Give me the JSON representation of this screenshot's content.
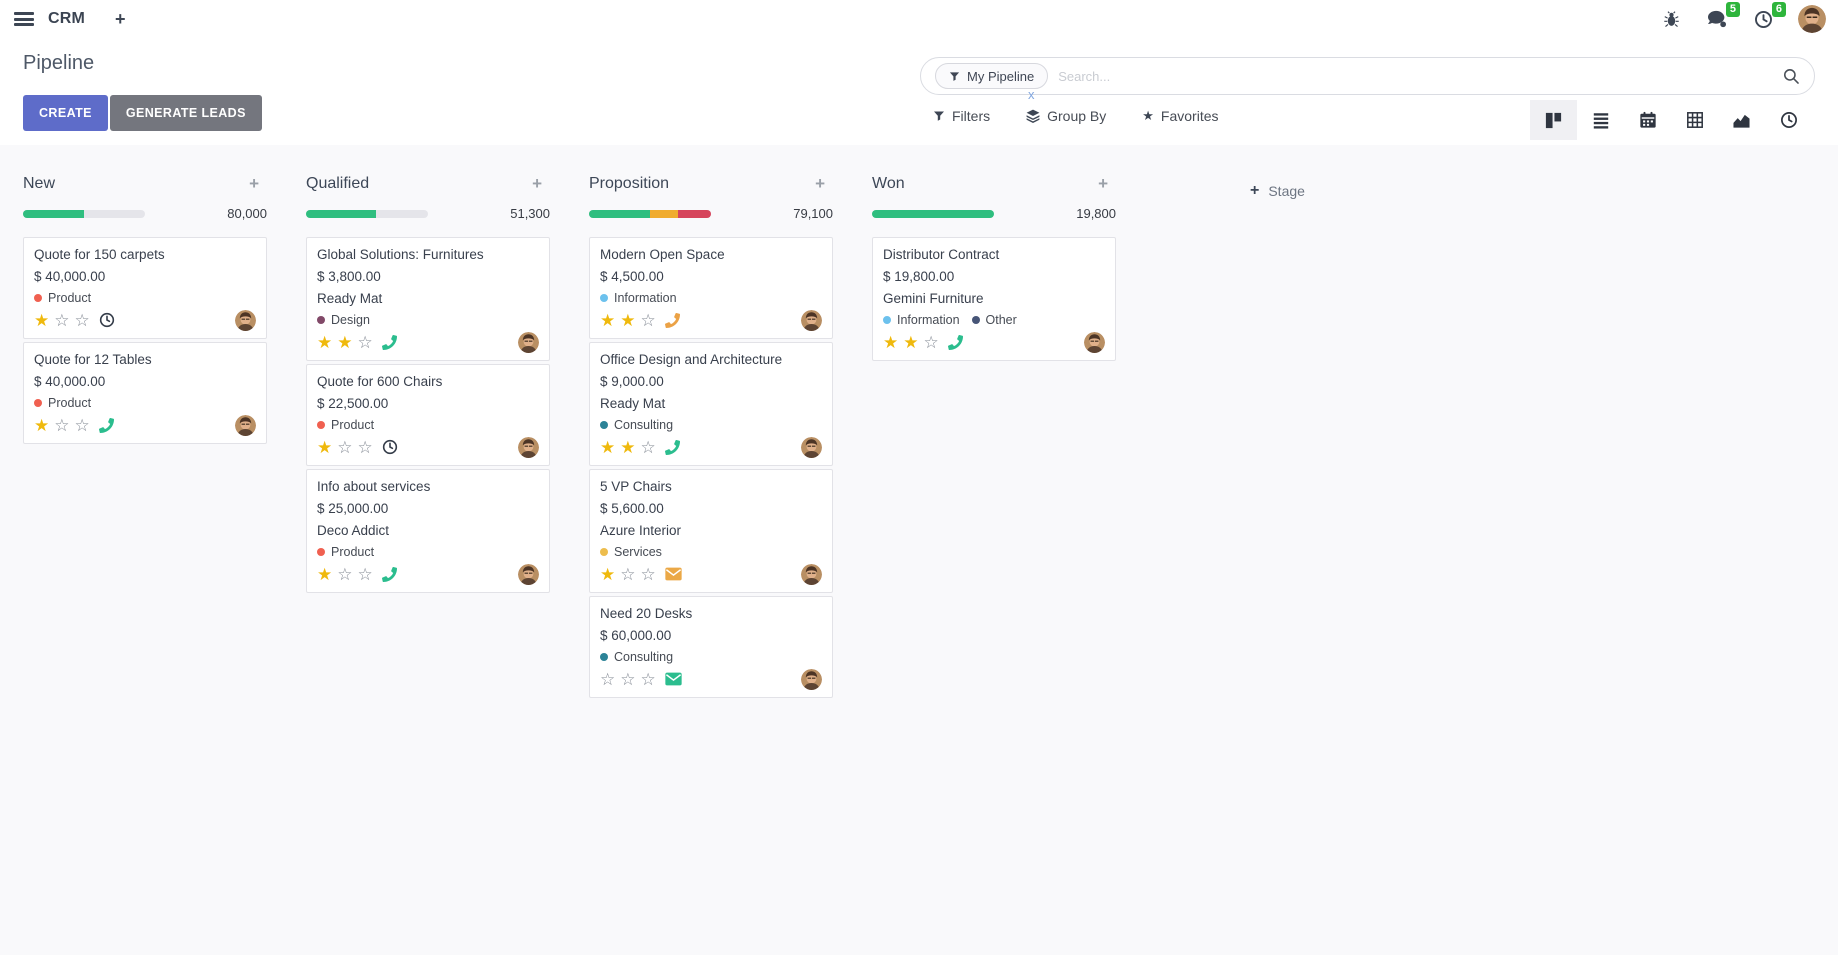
{
  "navbar": {
    "app_name": "CRM",
    "icons": [
      "menu",
      "plus",
      "bug",
      "messages",
      "activities",
      "user-avatar"
    ],
    "messages_badge": "5",
    "activities_badge": "6"
  },
  "control_panel": {
    "title": "Pipeline",
    "buttons": {
      "create": "CREATE",
      "generate_leads": "GENERATE LEADS"
    },
    "search": {
      "facet_label": "My Pipeline",
      "facet_remove": "x",
      "placeholder": "Search..."
    },
    "toolbar": {
      "filters": "Filters",
      "group_by": "Group By",
      "favorites": "Favorites"
    },
    "view_switcher": {
      "options": [
        "kanban",
        "list",
        "calendar",
        "pivot",
        "graph",
        "activity"
      ],
      "active": "kanban"
    }
  },
  "colors": {
    "create_button": "#5e6cc9",
    "generate_button": "#74767e",
    "badge_green": "#2eb53c",
    "progress_green": "#2fbe7f",
    "progress_orange": "#f0ac2f",
    "progress_red": "#d6455c",
    "star_filled": "#efb90d",
    "star_empty": "#878d97"
  },
  "board": {
    "add_stage_label": "Stage",
    "columns": [
      {
        "name": "New",
        "total": "80,000",
        "progress": [
          {
            "color": "#2fbe7f",
            "pct": 50
          }
        ],
        "cards": [
          {
            "title": "Quote for 150 carpets",
            "amount": "$ 40,000.00",
            "tags": [
              {
                "label": "Product",
                "color": "#f06050"
              }
            ],
            "stars": 1,
            "activity": {
              "icon": "clock",
              "color": "#343c49"
            }
          },
          {
            "title": "Quote for 12 Tables",
            "amount": "$ 40,000.00",
            "tags": [
              {
                "label": "Product",
                "color": "#f06050"
              }
            ],
            "stars": 1,
            "activity": {
              "icon": "phone",
              "color": "#2bbd8e"
            }
          }
        ]
      },
      {
        "name": "Qualified",
        "total": "51,300",
        "progress": [
          {
            "color": "#2fbe7f",
            "pct": 57
          }
        ],
        "cards": [
          {
            "title": "Global Solutions: Furnitures",
            "amount": "$ 3,800.00",
            "partner": "Ready Mat",
            "tags": [
              {
                "label": "Design",
                "color": "#814968"
              }
            ],
            "stars": 2,
            "activity": {
              "icon": "phone",
              "color": "#2bbd8e"
            }
          },
          {
            "title": "Quote for 600 Chairs",
            "amount": "$ 22,500.00",
            "tags": [
              {
                "label": "Product",
                "color": "#f06050"
              }
            ],
            "stars": 1,
            "activity": {
              "icon": "clock",
              "color": "#343c49"
            }
          },
          {
            "title": "Info about services",
            "amount": "$ 25,000.00",
            "partner": "Deco Addict",
            "tags": [
              {
                "label": "Product",
                "color": "#f06050"
              }
            ],
            "stars": 1,
            "activity": {
              "icon": "phone",
              "color": "#2bbd8e"
            }
          }
        ]
      },
      {
        "name": "Proposition",
        "total": "79,100",
        "progress": [
          {
            "color": "#2fbe7f",
            "pct": 50
          },
          {
            "color": "#f0ac2f",
            "pct": 23
          },
          {
            "color": "#d6455c",
            "pct": 27
          }
        ],
        "cards": [
          {
            "title": "Modern Open Space",
            "amount": "$ 4,500.00",
            "tags": [
              {
                "label": "Information",
                "color": "#6cc1ed"
              }
            ],
            "stars": 2,
            "activity": {
              "icon": "phone",
              "color": "#eba246"
            }
          },
          {
            "title": "Office Design and Architecture",
            "amount": "$ 9,000.00",
            "partner": "Ready Mat",
            "tags": [
              {
                "label": "Consulting",
                "color": "#2c8397"
              }
            ],
            "stars": 2,
            "activity": {
              "icon": "phone",
              "color": "#2bbd8e"
            }
          },
          {
            "title": "5 VP Chairs",
            "amount": "$ 5,600.00",
            "partner": "Azure Interior",
            "tags": [
              {
                "label": "Services",
                "color": "#edbd4d"
              }
            ],
            "stars": 1,
            "activity": {
              "icon": "envelope",
              "color": "#eba846"
            }
          },
          {
            "title": "Need 20 Desks",
            "amount": "$ 60,000.00",
            "tags": [
              {
                "label": "Consulting",
                "color": "#2c8397"
              }
            ],
            "stars": 0,
            "activity": {
              "icon": "envelope",
              "color": "#2bbd8e"
            }
          }
        ]
      },
      {
        "name": "Won",
        "total": "19,800",
        "progress": [
          {
            "color": "#2fbe7f",
            "pct": 100
          }
        ],
        "cards": [
          {
            "title": "Distributor Contract",
            "amount": "$ 19,800.00",
            "partner": "Gemini Furniture",
            "tags": [
              {
                "label": "Information",
                "color": "#6cc1ed"
              },
              {
                "label": "Other",
                "color": "#475577"
              }
            ],
            "stars": 2,
            "activity": {
              "icon": "phone",
              "color": "#2bbd8e"
            }
          }
        ]
      }
    ]
  }
}
